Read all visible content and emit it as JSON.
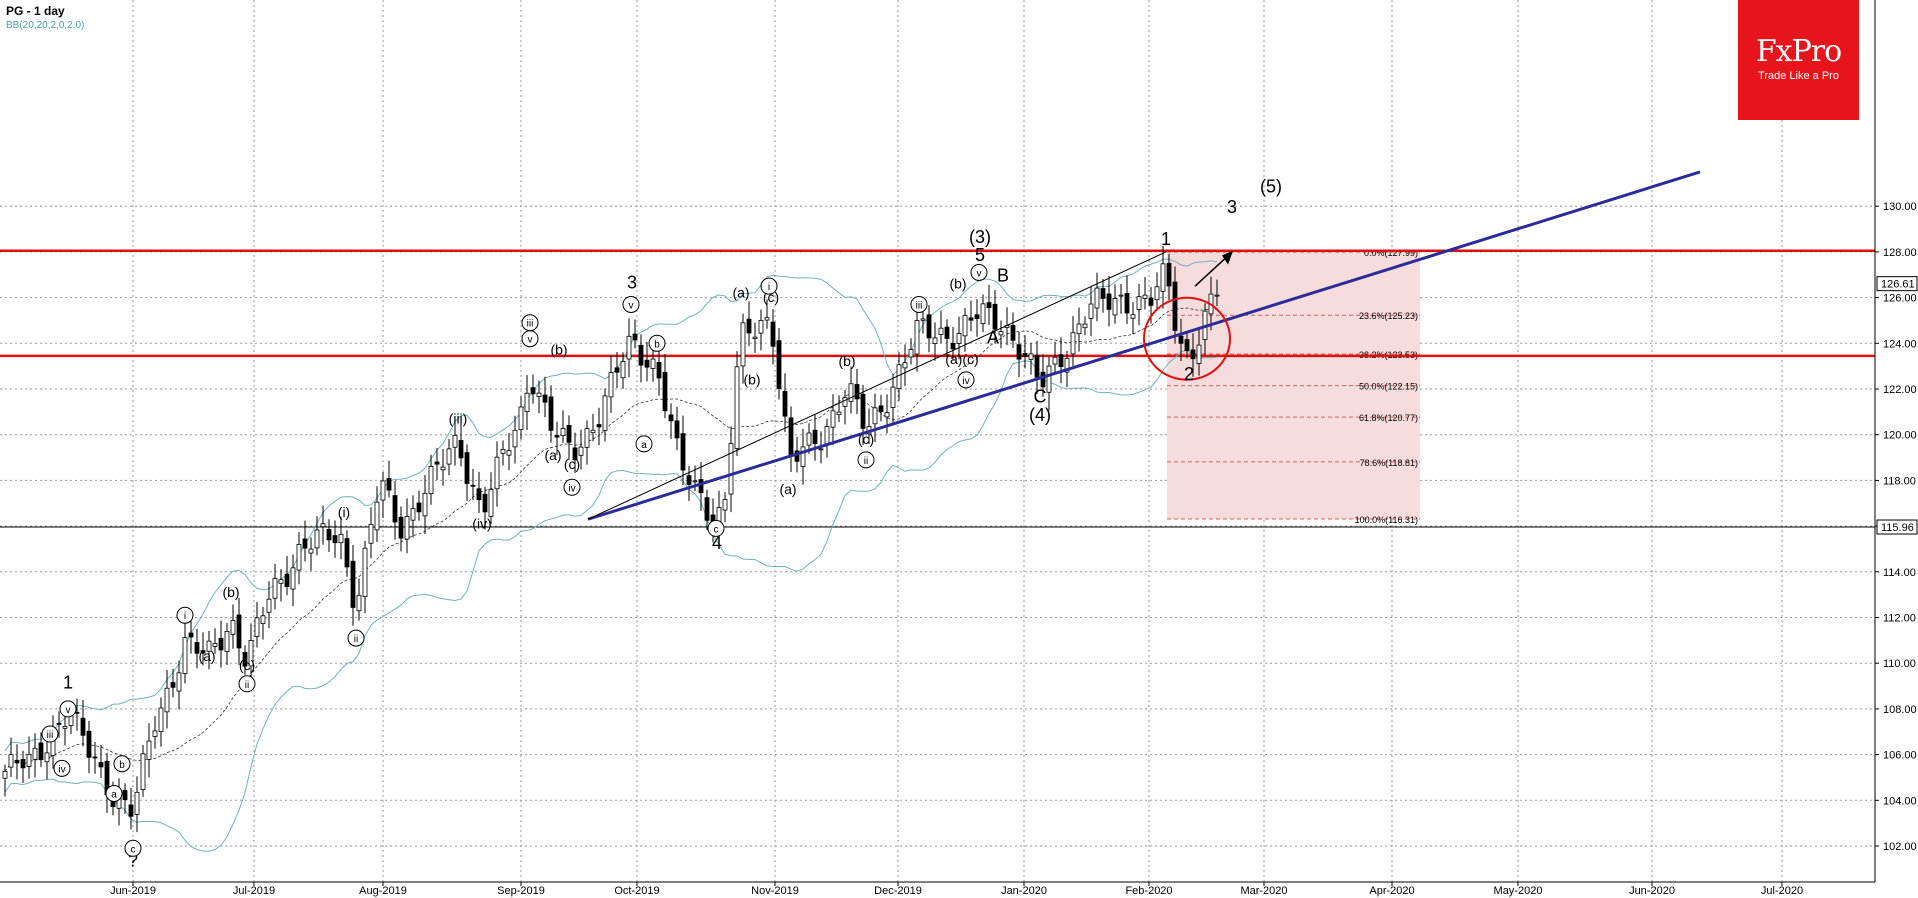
{
  "header": {
    "symbol": "PG   - 1 day",
    "indicator": "BB(20,20,2,0,2.0)"
  },
  "logo": {
    "name": "FxPro",
    "tagline": "Trade Like a Pro",
    "color": "#e8141b"
  },
  "chart_data": {
    "type": "candlestick",
    "x_axis": {
      "labels": [
        "Jun-2019",
        "Jul-2019",
        "Aug-2019",
        "Sep-2019",
        "Oct-2019",
        "Nov-2019",
        "Dec-2019",
        "Jan-2020",
        "Feb-2020",
        "Mar-2020",
        "Apr-2020",
        "May-2020",
        "Jun-2020",
        "Jul-2020"
      ]
    },
    "y_axis": {
      "range": [
        101.0,
        131.0
      ],
      "ticks": [
        102,
        104,
        106,
        108,
        110,
        112,
        114,
        116,
        118,
        120,
        122,
        124,
        126,
        128,
        130
      ],
      "price_labels": [
        "126.61",
        "115.96"
      ]
    },
    "grid": true,
    "horizontal_levels": [
      {
        "value": 128.05,
        "color": "#e01010"
      },
      {
        "value": 123.45,
        "color": "#e01010"
      },
      {
        "value": 115.96,
        "color": "#000000"
      }
    ],
    "fibonacci": [
      {
        "label": "0.0%(127.99)",
        "value": 127.99
      },
      {
        "label": "23.6%(125.23)",
        "value": 125.23
      },
      {
        "label": "38.2%(123.53)",
        "value": 123.53
      },
      {
        "label": "50.0%(122.15)",
        "value": 122.15
      },
      {
        "label": "61.8%(120.77)",
        "value": 120.77
      },
      {
        "label": "78.6%(118.81)",
        "value": 118.81
      },
      {
        "label": "100.0%(116.31)",
        "value": 116.31
      }
    ],
    "trendline": {
      "from": [
        588,
        116.3
      ],
      "to": [
        1700,
        131.5
      ],
      "color": "#2b2b9a"
    },
    "wave_labels": [
      {
        "text": "(5)",
        "x": 1271,
        "y": 130.6
      },
      {
        "text": "3",
        "x": 1232,
        "y": 129.7
      },
      {
        "text": "(3)",
        "x": 980,
        "y": 128.4
      },
      {
        "text": "1",
        "x": 1166,
        "y": 128.3
      },
      {
        "text": "5",
        "x": 980,
        "y": 127.6
      },
      {
        "text": "B",
        "x": 1003,
        "y": 126.7
      },
      {
        "text": "3",
        "x": 632,
        "y": 126.4
      },
      {
        "text": "A",
        "x": 993,
        "y": 124.0
      },
      {
        "text": "C",
        "x": 1040,
        "y": 121.4
      },
      {
        "text": "(4)",
        "x": 1040,
        "y": 120.6
      },
      {
        "text": "2",
        "x": 1189,
        "y": 122.4
      },
      {
        "text": "4",
        "x": 717,
        "y": 115.0
      },
      {
        "text": "1",
        "x": 68,
        "y": 108.9
      },
      {
        "text": "?",
        "x": 133,
        "y": 101.1
      },
      {
        "text": "(a)",
        "x": 741,
        "y": 126.0
      },
      {
        "text": "(c)",
        "x": 771,
        "y": 125.8
      },
      {
        "text": "(b)",
        "x": 559,
        "y": 123.5
      },
      {
        "text": "(b)",
        "x": 958,
        "y": 126.4
      },
      {
        "text": "(a)(c)",
        "x": 962,
        "y": 123.1
      },
      {
        "text": "(b)",
        "x": 847,
        "y": 123.0
      },
      {
        "text": "(b)",
        "x": 752,
        "y": 122.2
      },
      {
        "text": "(iii)",
        "x": 458,
        "y": 120.5
      },
      {
        "text": "(a)",
        "x": 553,
        "y": 118.9
      },
      {
        "text": "(c)",
        "x": 572,
        "y": 118.5
      },
      {
        "text": "(a)",
        "x": 788,
        "y": 117.4
      },
      {
        "text": "(iv)",
        "x": 482,
        "y": 115.9
      },
      {
        "text": "(i)",
        "x": 344,
        "y": 116.4
      },
      {
        "text": "(b)",
        "x": 231,
        "y": 112.9
      },
      {
        "text": "(a)",
        "x": 207,
        "y": 110.1
      },
      {
        "text": "(c)",
        "x": 247,
        "y": 109.7
      },
      {
        "text": "(c)",
        "x": 866,
        "y": 119.6
      }
    ],
    "circled_labels": [
      {
        "text": "v",
        "x": 979,
        "y": 127.1
      },
      {
        "text": "iii",
        "x": 919,
        "y": 125.7
      },
      {
        "text": "iv",
        "x": 966,
        "y": 122.4
      },
      {
        "text": "i",
        "x": 769,
        "y": 126.5
      },
      {
        "text": "v",
        "x": 631,
        "y": 125.7
      },
      {
        "text": "b",
        "x": 657,
        "y": 124.0
      },
      {
        "text": "a",
        "x": 644,
        "y": 119.6
      },
      {
        "text": "ii",
        "x": 866,
        "y": 118.9
      },
      {
        "text": "v",
        "x": 530,
        "y": 124.2
      },
      {
        "text": "iii",
        "x": 530,
        "y": 124.9
      },
      {
        "text": "iv",
        "x": 572,
        "y": 117.7
      },
      {
        "text": "i",
        "x": 185,
        "y": 112.1
      },
      {
        "text": "ii",
        "x": 247,
        "y": 109.1
      },
      {
        "text": "ii",
        "x": 356,
        "y": 111.1
      },
      {
        "text": "v",
        "x": 68,
        "y": 108.0
      },
      {
        "text": "iii",
        "x": 50,
        "y": 106.9
      },
      {
        "text": "iv",
        "x": 62,
        "y": 105.4
      },
      {
        "text": "b",
        "x": 122,
        "y": 105.6
      },
      {
        "text": "a",
        "x": 114,
        "y": 104.3
      },
      {
        "text": "c",
        "x": 133,
        "y": 101.9
      },
      {
        "text": "c",
        "x": 716,
        "y": 115.9
      }
    ]
  }
}
